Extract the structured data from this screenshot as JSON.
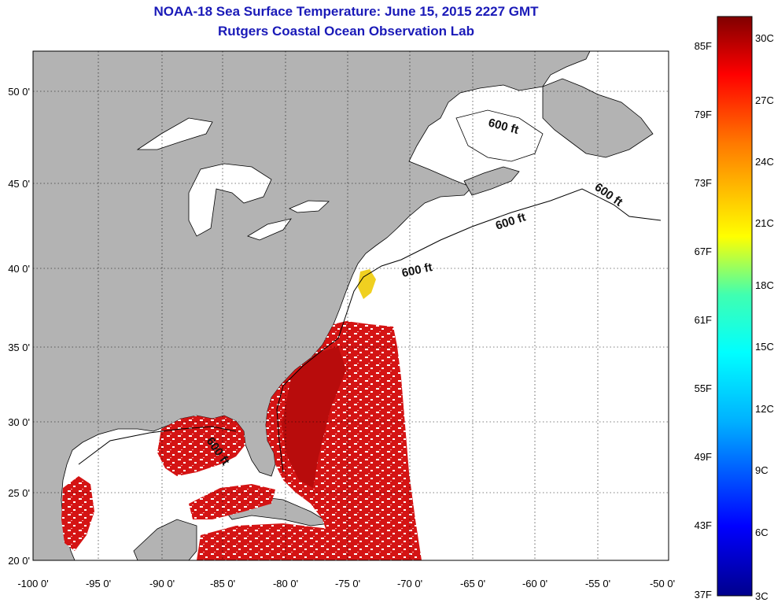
{
  "title": {
    "line1": "NOAA-18 Sea Surface Temperature:  June 15, 2015 2227 GMT",
    "line2": "Rutgers Coastal Ocean Observation Lab"
  },
  "map": {
    "lon_range": [
      -100,
      -50
    ],
    "lat_range": [
      20,
      52
    ],
    "x_ticks": [
      "-100 0'",
      "-95 0'",
      "-90 0'",
      "-85 0'",
      "-80 0'",
      "-75 0'",
      "-70 0'",
      "-65 0'",
      "-60 0'",
      "-55 0'",
      "-50 0'"
    ],
    "y_ticks": [
      "50 0'",
      "45 0'",
      "40 0'",
      "35 0'",
      "30 0'",
      "25 0'",
      "20 0'"
    ],
    "contour": "600 ft",
    "colors": {
      "land": "#b3b3b3",
      "warm_sst": "#d01010",
      "hot_sst": "#b00808",
      "no_data": "#ffffff"
    }
  },
  "colorbar": {
    "f_labels": [
      "85F",
      "79F",
      "73F",
      "67F",
      "61F",
      "55F",
      "49F",
      "43F",
      "37F"
    ],
    "c_labels": [
      "30C",
      "27C",
      "24C",
      "21C",
      "18C",
      "15C",
      "12C",
      "9C",
      "6C",
      "3C"
    ]
  }
}
